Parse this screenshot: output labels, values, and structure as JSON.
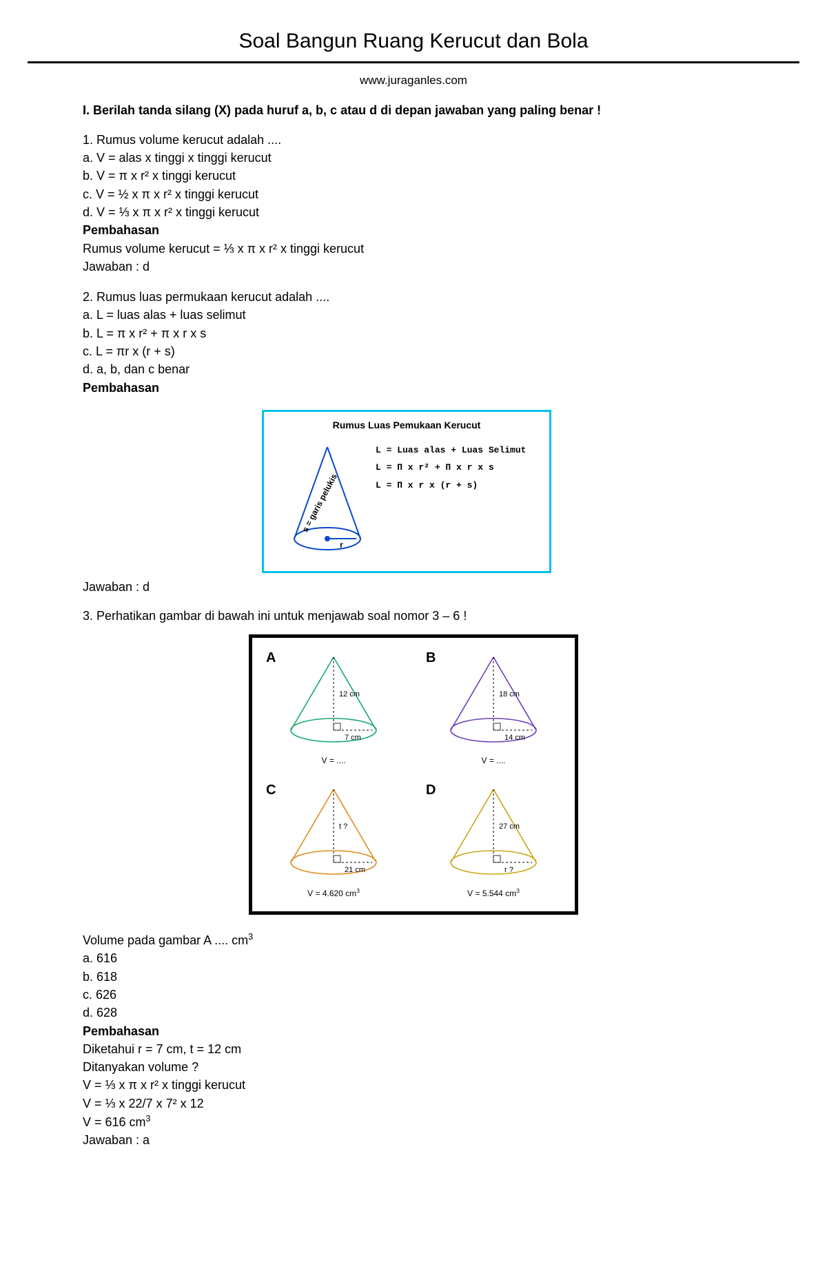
{
  "page": {
    "title": "Soal Bangun Ruang Kerucut dan Bola",
    "subtitle": "www.juraganles.com"
  },
  "section1": {
    "heading": "I. Berilah tanda silang (X) pada huruf a, b, c atau d di depan jawaban yang paling benar !"
  },
  "q1": {
    "text": "1. Rumus volume kerucut adalah ....",
    "a": "a. V = alas x tinggi x tinggi kerucut",
    "b": "b. V = π x r² x tinggi kerucut",
    "c": "c. V = ½ x π x r² x tinggi kerucut",
    "d": "d. V = ⅓ x π x r² x tinggi kerucut",
    "pembahasan_label": "Pembahasan",
    "pembahasan": "Rumus volume kerucut = ⅓ x π x r² x tinggi kerucut",
    "jawaban": "Jawaban : d"
  },
  "q2": {
    "text": "2. Rumus luas permukaan kerucut adalah ....",
    "a": "a. L = luas alas + luas selimut",
    "b": "b. L = π x r² + π x r x s",
    "c": "c. L = πr x (r + s)",
    "d": "d. a, b, dan c benar",
    "pembahasan_label": "Pembahasan",
    "jawaban": "Jawaban : d"
  },
  "fig1": {
    "title": "Rumus Luas Pemukaan Kerucut",
    "slant_label": "s = garis pelukis",
    "r_label": "r",
    "f1": "L = Luas alas + Luas Selimut",
    "f2": "L = Π x r² +  Π  x r x s",
    "f3": "L = Π x r x  (r + s)",
    "border_color": "#00c2ed",
    "cone_color": "#0b49c9"
  },
  "q3": {
    "intro": "3. Perhatikan gambar di bawah ini untuk menjawab soal nomor 3 – 6 !",
    "text": "Volume pada gambar A .... cm³",
    "a": "a. 616",
    "b": "b. 618",
    "c": "c. 626",
    "d": "d. 628",
    "pembahasan_label": "Pembahasan",
    "p1": "Diketahui r = 7 cm, t = 12 cm",
    "p2": "Ditanyakan volume ?",
    "p3": "V = ⅓ x π x r² x tinggi kerucut",
    "p4": "V = ⅓ x 22/7 x 7² x 12",
    "p5": "V = 616 cm³",
    "jawaban": "Jawaban : a"
  },
  "fig2": {
    "cells": {
      "A": {
        "label": "A",
        "h_label": "12 cm",
        "r_label": "7 cm",
        "caption": "V = ....",
        "color": "#17a86b"
      },
      "B": {
        "label": "B",
        "h_label": "18 cm",
        "r_label": "14 cm",
        "caption": "V = ....",
        "color": "#6a3fb5"
      },
      "C": {
        "label": "C",
        "h_label": "t ?",
        "r_label": "21 cm",
        "caption": "V =  4.620 cm³",
        "color": "#e08a1e"
      },
      "D": {
        "label": "D",
        "h_label": "27 cm",
        "r_label": "r ?",
        "caption": "V = 5.544 cm³",
        "color": "#caa514"
      }
    }
  }
}
